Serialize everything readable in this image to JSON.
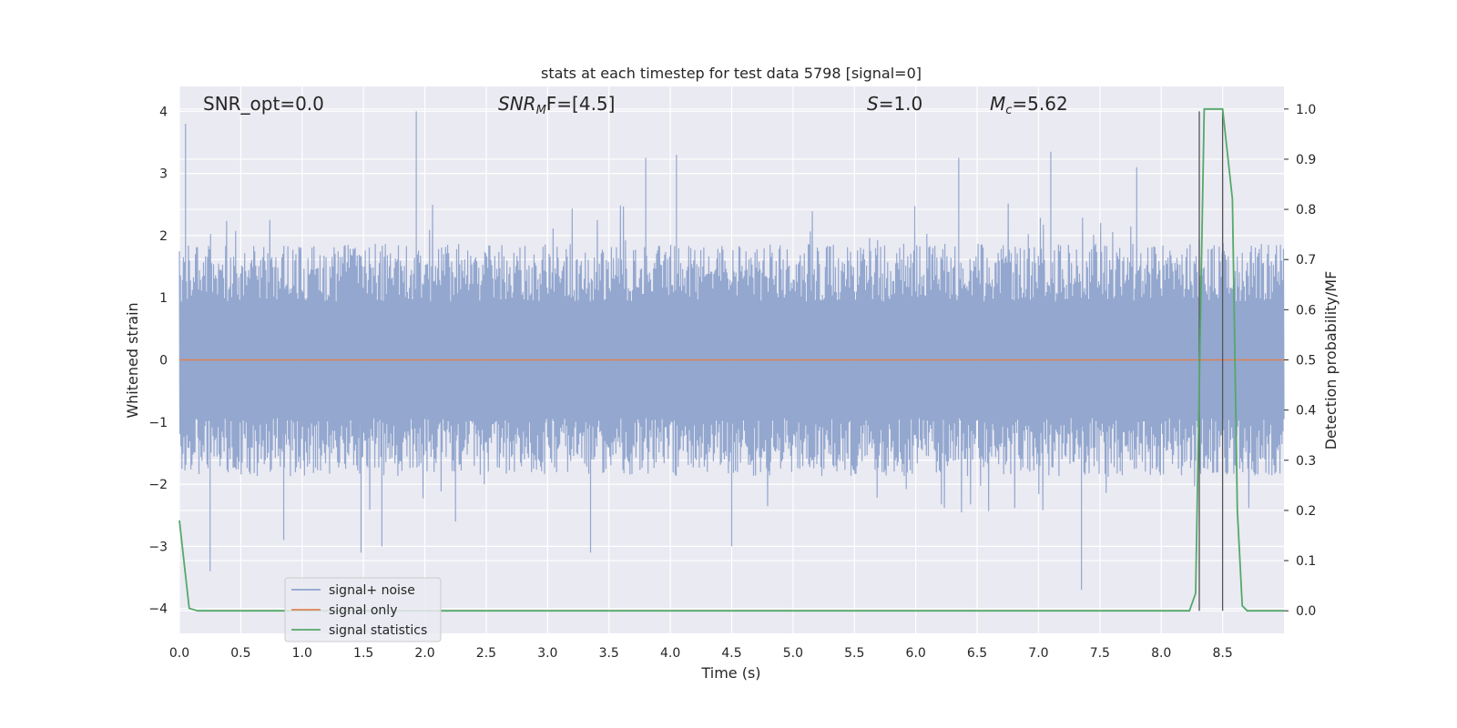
{
  "chart_data": {
    "type": "line",
    "title": "stats at each timestep for test data 5798 [signal=0]",
    "xlabel": "Time (s)",
    "ylabel": "Whitened strain",
    "y2label": "Detection probability/MF",
    "xlim": [
      0.0,
      9.0
    ],
    "ylim": [
      -4.4,
      4.4
    ],
    "y2lim": [
      -0.045,
      1.045
    ],
    "xticks": [
      "0.0",
      "0.5",
      "1.0",
      "1.5",
      "2.0",
      "2.5",
      "3.0",
      "3.5",
      "4.0",
      "4.5",
      "5.0",
      "5.5",
      "6.0",
      "6.5",
      "7.0",
      "7.5",
      "8.0",
      "8.5"
    ],
    "yticks": [
      "4",
      "3",
      "2",
      "1",
      "0",
      "−1",
      "−2",
      "−3",
      "−4"
    ],
    "y2ticks": [
      "1.0",
      "0.9",
      "0.8",
      "0.7",
      "0.6",
      "0.5",
      "0.4",
      "0.3",
      "0.2",
      "0.1",
      "0.0"
    ],
    "grid": true,
    "legend_position": "lower-left",
    "annotations": {
      "snr_opt": "SNR_opt=0.0",
      "snr_mf_main": "SNR",
      "snr_mf_sub": "M",
      "snr_mf_rest": "F=[4.5]",
      "s_sym": "S",
      "s_rest": "=1.0",
      "mc_main": "M",
      "mc_sub": "c",
      "mc_rest": "=5.62"
    },
    "series": [
      {
        "name": "signal+ noise",
        "color": "#8ea3cc",
        "description_values": {
          "envelope_typical": [
            -1.7,
            1.7
          ],
          "peaks": [
            [
              0.05,
              3.8
            ],
            [
              0.25,
              -3.4
            ],
            [
              0.85,
              -2.9
            ],
            [
              1.48,
              -3.1
            ],
            [
              1.65,
              -3.0
            ],
            [
              1.93,
              4.0
            ],
            [
              2.25,
              -2.6
            ],
            [
              3.35,
              -3.1
            ],
            [
              3.8,
              3.25
            ],
            [
              4.05,
              3.3
            ],
            [
              4.5,
              -3.0
            ],
            [
              6.35,
              3.25
            ],
            [
              7.1,
              3.35
            ],
            [
              7.35,
              -3.7
            ],
            [
              7.8,
              3.1
            ],
            [
              8.5,
              3.0
            ]
          ]
        }
      },
      {
        "name": "signal only",
        "color": "#dd8452",
        "values_constant": 0.0
      },
      {
        "name": "signal statistics",
        "color": "#55a868",
        "x": [
          0.0,
          0.08,
          0.15,
          1.0,
          2.0,
          3.0,
          4.0,
          5.0,
          6.0,
          7.0,
          8.0,
          8.23,
          8.28,
          8.35,
          8.4,
          8.5,
          8.58,
          8.62,
          8.66,
          8.7,
          9.0
        ],
        "y": [
          0.18,
          0.005,
          0.0,
          0.0,
          0.0,
          0.0,
          0.0,
          0.0,
          0.0,
          0.0,
          0.0,
          0.0,
          0.035,
          1.0,
          1.0,
          1.0,
          0.82,
          0.2,
          0.01,
          0.0,
          0.0
        ]
      }
    ],
    "vertical_markers": {
      "color": "#555555",
      "x": [
        8.31,
        8.5
      ]
    },
    "colors": {
      "axes_bg": "#eaeaf2",
      "grid": "#ffffff",
      "text": "#262626"
    }
  }
}
